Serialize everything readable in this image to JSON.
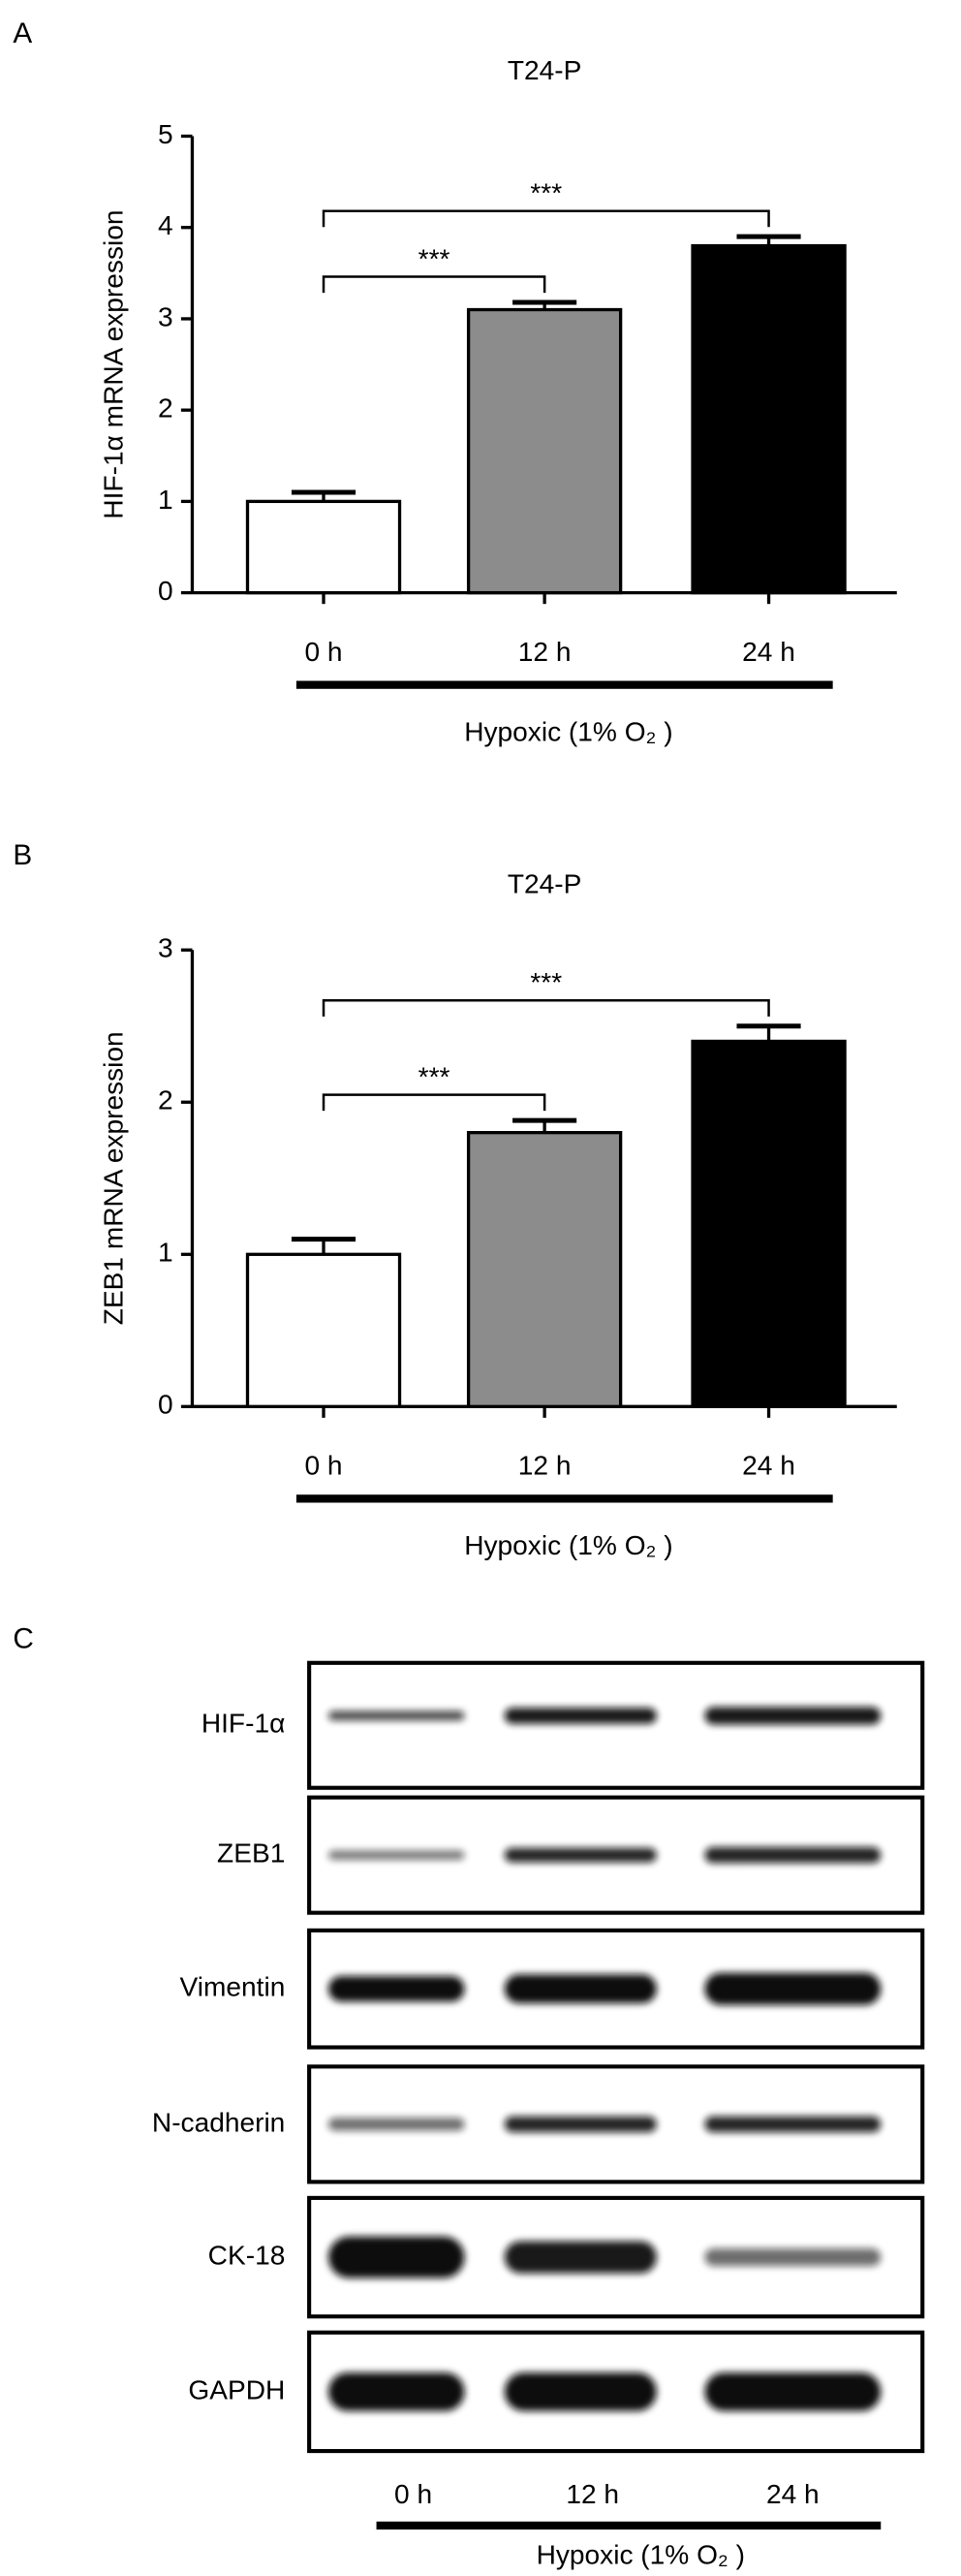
{
  "panels": {
    "a": "A",
    "b": "B",
    "c": "C"
  },
  "chart_data": [
    {
      "type": "bar",
      "title": "T24-P",
      "y_label": "HIF-1α mRNA expression",
      "categories": [
        "0 h",
        "12 h",
        "24 h"
      ],
      "values": [
        1.0,
        3.1,
        3.8
      ],
      "errors": [
        0.1,
        0.08,
        0.1
      ],
      "colors": [
        "#ffffff",
        "#8c8c8c",
        "#000000"
      ],
      "ylim": [
        0,
        5
      ],
      "yticks": [
        0,
        1,
        2,
        3,
        4,
        5
      ],
      "significance": [
        {
          "between": [
            "0 h",
            "12 h"
          ],
          "label": "***"
        },
        {
          "between": [
            "0 h",
            "24 h"
          ],
          "label": "***"
        }
      ],
      "group_label": "Hypoxic (1% O₂ )"
    },
    {
      "type": "bar",
      "title": "T24-P",
      "y_label": "ZEB1 mRNA expression",
      "categories": [
        "0 h",
        "12 h",
        "24 h"
      ],
      "values": [
        1.0,
        1.8,
        2.4
      ],
      "errors": [
        0.1,
        0.08,
        0.1
      ],
      "colors": [
        "#ffffff",
        "#8c8c8c",
        "#000000"
      ],
      "ylim": [
        0,
        3
      ],
      "yticks": [
        0,
        1,
        2,
        3
      ],
      "significance": [
        {
          "between": [
            "0 h",
            "12 h"
          ],
          "label": "***"
        },
        {
          "between": [
            "0 h",
            "24 h"
          ],
          "label": "***"
        }
      ],
      "group_label": "Hypoxic (1% O₂ )"
    }
  ],
  "blot": {
    "rows": [
      "HIF-1α",
      "ZEB1",
      "Vimentin",
      "N-cadherin",
      "CK-18",
      "GAPDH"
    ],
    "lanes": [
      "0 h",
      "12 h",
      "24 h"
    ],
    "group_label": "Hypoxic (1% O₂ )"
  }
}
